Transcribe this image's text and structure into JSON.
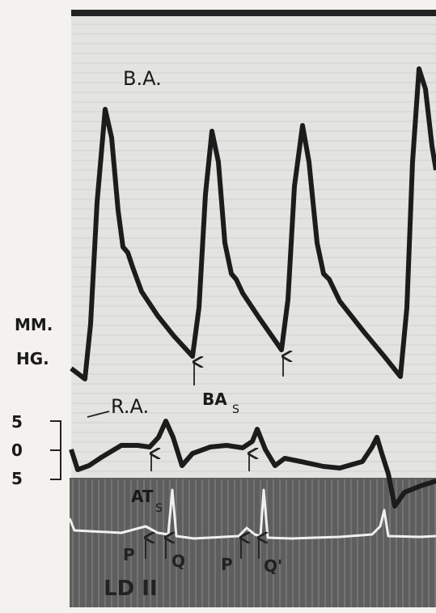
{
  "labels": {
    "trace_ba": "B.A.",
    "unit_mm": "MM.",
    "unit_hg": "HG.",
    "trace_ra": "R.A.",
    "marker_bas": "BA",
    "marker_bas_sub": "S",
    "scale": [
      "5",
      "0",
      "5"
    ],
    "marker_ats": "AT",
    "marker_ats_sub": "S",
    "ecg_markers": [
      "P",
      "Q",
      "P",
      "Q'"
    ],
    "lead": "LD II"
  }
}
